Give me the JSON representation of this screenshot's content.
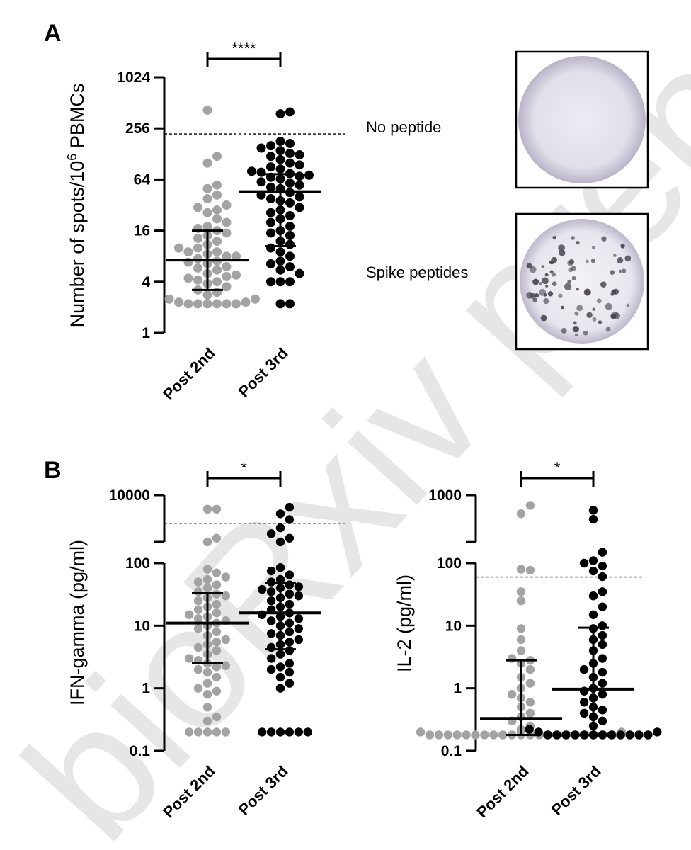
{
  "watermark": "bioRxiv preprint not peer reviewed",
  "panel_a_label": "A",
  "panel_b_label": "B",
  "wells": {
    "no_peptide": "No peptide",
    "spike_peptides": "Spike peptides"
  },
  "colors": {
    "post2": "#a3a3a3",
    "post3": "#000000"
  },
  "chart_data": [
    {
      "id": "panel-a",
      "type": "scatter",
      "title": "",
      "ylabel_main": "Number of spots/10",
      "ylabel_sup": "6",
      "ylabel_tail": " PBMCs",
      "yscale": "log2",
      "ylim": [
        1,
        1024
      ],
      "yticks": [
        "1",
        "4",
        "16",
        "64",
        "256",
        "1024"
      ],
      "categories": [
        "Post 2nd",
        "Post 3rd"
      ],
      "threshold": 220,
      "significance": "****",
      "series": [
        {
          "values": [
            420,
            120,
            100,
            55,
            50,
            42,
            38,
            32,
            30,
            28,
            26,
            22,
            20,
            18,
            17,
            16,
            15,
            14,
            13,
            12,
            11,
            10,
            10,
            9,
            9,
            8.5,
            8,
            8,
            7.5,
            7,
            6.8,
            6.5,
            6,
            5.8,
            5.5,
            5,
            4.8,
            4.6,
            4.4,
            4.2,
            4,
            3.8,
            3.5,
            3.2,
            3,
            2.8,
            2.5,
            2.5,
            2.3,
            2.3,
            2.2,
            2.2,
            2.2,
            2.2,
            2.2,
            2.2
          ],
          "median": 7.2,
          "q1": 3.2,
          "q3": 16
        },
        {
          "values": [
            400,
            380,
            180,
            170,
            160,
            150,
            140,
            130,
            125,
            120,
            110,
            100,
            95,
            90,
            85,
            80,
            78,
            75,
            72,
            70,
            68,
            65,
            60,
            58,
            55,
            52,
            50,
            45,
            42,
            40,
            38,
            36,
            34,
            30,
            28,
            26,
            24,
            22,
            20,
            18,
            16,
            15,
            14,
            12,
            11,
            10,
            9,
            8,
            7,
            6.5,
            6,
            5.5,
            5,
            4,
            4,
            4,
            2.2,
            2.2
          ],
          "median": 46,
          "q1": 10.5,
          "q3": 74
        }
      ]
    },
    {
      "id": "panel-b-ifn",
      "type": "scatter",
      "title": "",
      "ylabel": "IFN-gamma (pg/ml)",
      "yscale": "log10",
      "ylim": [
        0.1,
        10000
      ],
      "yticks": [
        "0.1",
        "1",
        "10",
        "100",
        "10000"
      ],
      "axis_break": [
        100,
        800
      ],
      "categories": [
        "Post 2nd",
        "Post 3rd"
      ],
      "threshold": 2500,
      "significance": "*",
      "series": [
        {
          "values": [
            5000,
            5000,
            1200,
            1000,
            80,
            70,
            60,
            55,
            50,
            45,
            40,
            35,
            32,
            30,
            28,
            25,
            22,
            20,
            18,
            16,
            15,
            14,
            13,
            12,
            11,
            10,
            9,
            8,
            7,
            6,
            5.5,
            5,
            4.5,
            4,
            3.5,
            3,
            2.8,
            2.5,
            2.3,
            2.2,
            2,
            1.8,
            1.5,
            1.2,
            1,
            0.9,
            0.8,
            0.5,
            0.35,
            0.3,
            0.2,
            0.2,
            0.2,
            0.2,
            0.2
          ],
          "median": 11,
          "q1": 2.5,
          "q3": 33
        },
        {
          "values": [
            5500,
            4000,
            3000,
            2000,
            1500,
            1200,
            1000,
            85,
            75,
            65,
            55,
            50,
            45,
            42,
            40,
            38,
            35,
            32,
            30,
            28,
            25,
            22,
            20,
            18,
            16,
            15,
            14,
            13,
            12,
            11,
            10,
            9,
            8,
            7.5,
            7,
            6,
            5.5,
            5,
            4.5,
            4,
            3.5,
            3,
            2.5,
            2.2,
            2,
            1.8,
            1.5,
            1.2,
            1,
            0.2,
            0.2,
            0.2,
            0.2,
            0.2,
            0.2
          ],
          "median": 16,
          "q1": 4.2,
          "q3": 48
        }
      ]
    },
    {
      "id": "panel-b-il2",
      "type": "scatter",
      "title": "",
      "ylabel": "IL-2 (pg/ml)",
      "yscale": "log10",
      "ylim": [
        0.1,
        1000
      ],
      "yticks": [
        "0.1",
        "1",
        "10",
        "100",
        "1000"
      ],
      "axis_break": [
        100,
        150
      ],
      "categories": [
        "Post 2nd",
        "Post 3rd"
      ],
      "threshold": 60,
      "significance": "*",
      "series": [
        {
          "values": [
            860,
            760,
            330,
            80,
            35,
            25,
            9,
            6,
            4,
            3,
            2.8,
            2.5,
            2,
            1.5,
            1.2,
            1,
            0.8,
            0.7,
            0.6,
            0.5,
            0.4,
            0.35,
            0.3,
            0.25,
            0.22,
            0.2,
            0.2,
            0.2,
            0.2,
            0.2,
            0.18,
            0.18,
            0.18,
            0.18,
            0.18,
            0.18,
            0.18,
            0.18,
            0.18,
            0.18,
            0.18,
            0.18,
            0.18,
            0.18,
            0.18,
            0.18,
            0.18,
            0.18,
            0.18,
            0.18,
            0.18
          ],
          "median": 0.33,
          "q1": 0.18,
          "q3": 2.8
        },
        {
          "values": [
            800,
            700,
            430,
            380,
            300,
            100,
            90,
            75,
            35,
            30,
            20,
            15,
            10,
            9,
            7,
            6,
            5,
            4,
            3,
            2.5,
            2,
            1.8,
            1.5,
            1.2,
            1,
            0.9,
            0.8,
            0.7,
            0.6,
            0.5,
            0.45,
            0.4,
            0.35,
            0.3,
            0.25,
            0.22,
            0.2,
            0.2,
            0.18,
            0.18,
            0.18,
            0.18,
            0.18,
            0.18,
            0.18,
            0.18,
            0.18,
            0.18,
            0.18,
            0.18
          ],
          "median": 0.97,
          "q1": 0.18,
          "q3": 9.3
        }
      ]
    }
  ]
}
